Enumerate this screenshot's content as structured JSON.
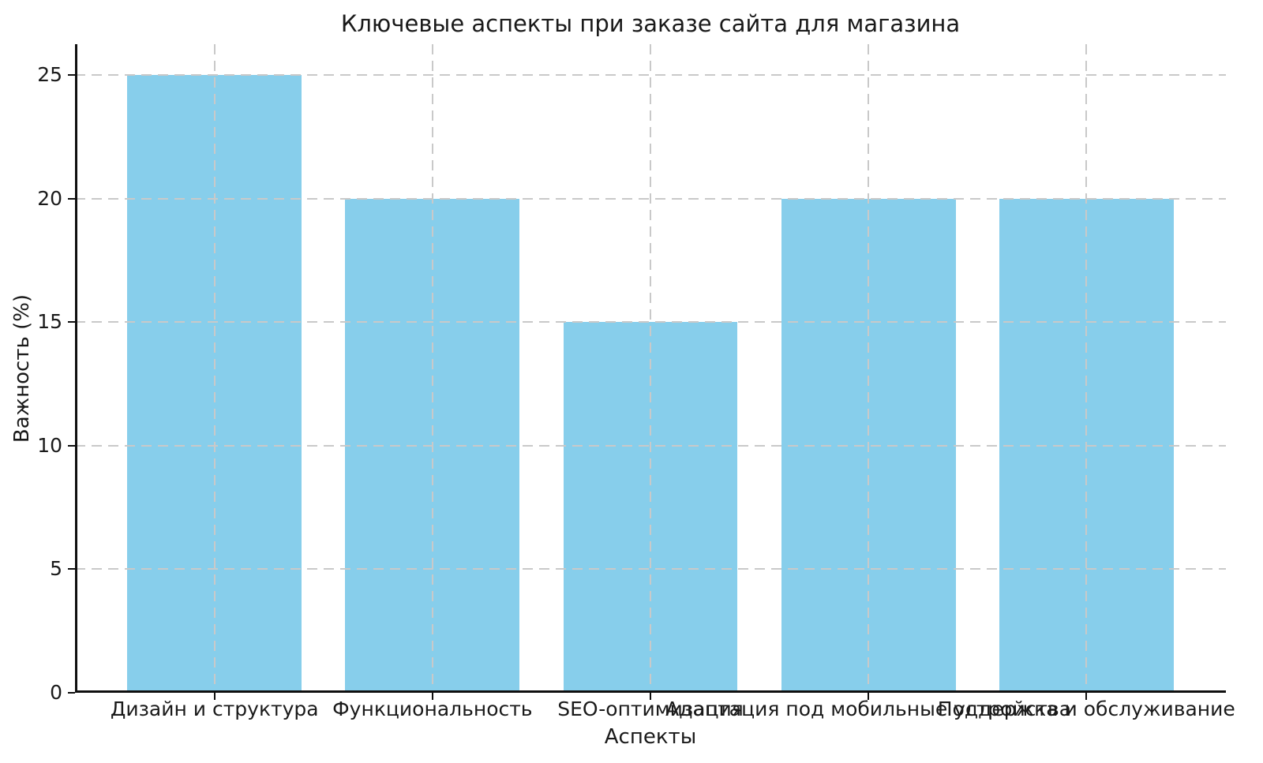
{
  "chart_data": {
    "type": "bar",
    "title": "Ключевые аспекты при заказе сайта для магазина",
    "xlabel": "Аспекты",
    "ylabel": "Важность (%)",
    "categories": [
      "Дизайн и структура",
      "Функциональность",
      "SEO-оптимизация",
      "Адаптация под мобильные устройства",
      "Поддержка и обслуживание"
    ],
    "values": [
      25,
      20,
      15,
      20,
      20
    ],
    "yticks": [
      0,
      5,
      10,
      15,
      20,
      25
    ],
    "ylim": [
      0,
      26.25
    ],
    "xlim": [
      -0.64,
      4.64
    ],
    "bar_width": 0.8,
    "grid": true,
    "grid_style": "dashed",
    "legend": "none",
    "colors": {
      "bar": "#87CEEB",
      "grid": "#c9c9c9",
      "axis": "#0f0f0f",
      "text": "#1a1a1a",
      "background": "#ffffff"
    }
  }
}
